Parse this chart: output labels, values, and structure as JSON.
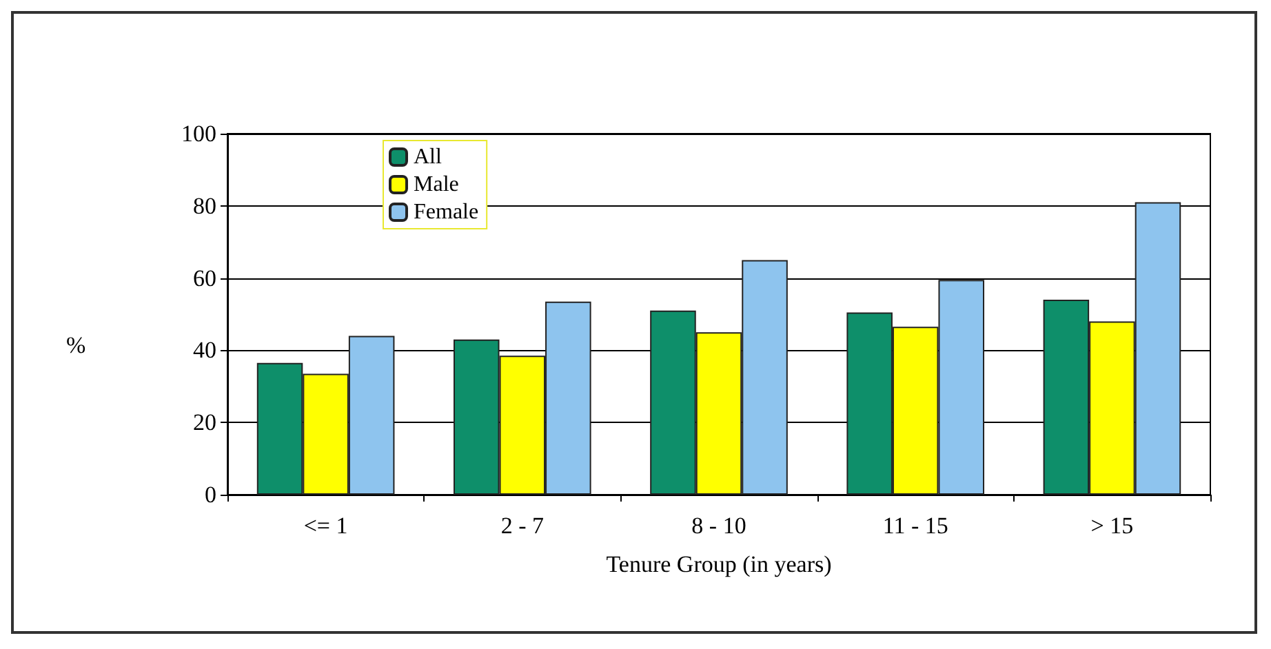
{
  "chart_data": {
    "type": "bar",
    "xlabel": "Tenure Group (in years)",
    "ylabel": "%",
    "categories": [
      "<= 1",
      "2 - 7",
      "8 - 10",
      "11 - 15",
      "> 15"
    ],
    "series": [
      {
        "name": "All",
        "color": "#0e8f6a",
        "values": [
          36.5,
          43,
          51,
          50.5,
          54
        ]
      },
      {
        "name": "Male",
        "color": "#ffff00",
        "values": [
          33.5,
          38.5,
          45,
          46.5,
          48
        ]
      },
      {
        "name": "Female",
        "color": "#8ec4ee",
        "values": [
          44,
          53.5,
          65,
          59.5,
          81
        ]
      }
    ],
    "ylim": [
      0,
      100
    ],
    "yticks": [
      0,
      20,
      40,
      60,
      80,
      100
    ],
    "grid": "y",
    "legend": "top left"
  }
}
